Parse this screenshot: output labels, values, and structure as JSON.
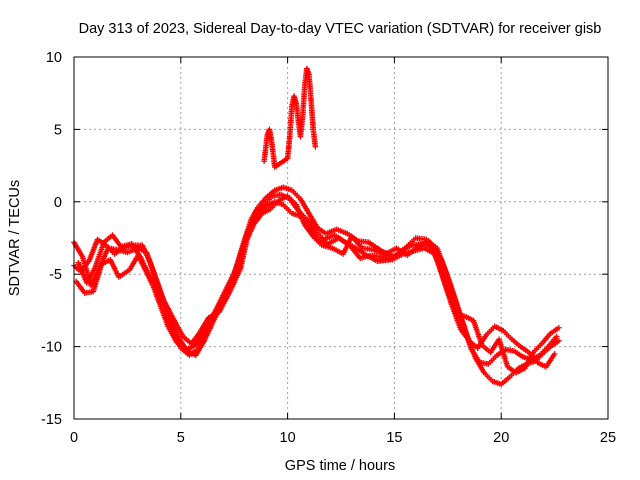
{
  "chart_data": {
    "type": "scatter",
    "title": "Day 313 of 2023, Sidereal Day-to-day VTEC variation (SDTVAR) for receiver gisb",
    "xlabel": "GPS time / hours",
    "ylabel": "SDTVAR / TECUs",
    "xlim": [
      0,
      25
    ],
    "ylim": [
      -15,
      10
    ],
    "xticks": [
      0,
      5,
      10,
      15,
      20,
      25
    ],
    "yticks": [
      -15,
      -10,
      -5,
      0,
      5,
      10
    ],
    "x_tick_labels": [
      "0",
      "5",
      "10",
      "15",
      "20",
      "25"
    ],
    "y_tick_labels": [
      "-15",
      "-10",
      "-5",
      "0",
      "5",
      "10"
    ],
    "grid": true,
    "marker": "+",
    "color": "#ff0000",
    "series": [
      {
        "name": "track-a",
        "points": [
          [
            0,
            -2.8
          ],
          [
            0.4,
            -3.8
          ],
          [
            0.8,
            -5.8
          ],
          [
            1.2,
            -4.5
          ],
          [
            1.6,
            -3.2
          ],
          [
            2.0,
            -3.3
          ],
          [
            2.5,
            -3.5
          ],
          [
            3.0,
            -3.2
          ],
          [
            3.4,
            -3.5
          ],
          [
            3.8,
            -5.2
          ],
          [
            4.1,
            -6.5
          ],
          [
            4.5,
            -8.0
          ],
          [
            4.9,
            -9.4
          ],
          [
            5.3,
            -10.3
          ],
          [
            5.7,
            -10.6
          ],
          [
            6.1,
            -9.6
          ],
          [
            6.6,
            -8.0
          ],
          [
            7.1,
            -6.6
          ],
          [
            7.5,
            -5.0
          ],
          [
            7.9,
            -3.0
          ],
          [
            8.3,
            -1.2
          ],
          [
            8.6,
            -0.4
          ],
          [
            9.0,
            0.3
          ],
          [
            9.4,
            0.8
          ],
          [
            9.8,
            1.0
          ],
          [
            10.2,
            0.8
          ],
          [
            10.6,
            0.2
          ],
          [
            11.0,
            -0.8
          ],
          [
            11.4,
            -1.8
          ],
          [
            11.8,
            -2.2
          ],
          [
            12.3,
            -1.9
          ],
          [
            12.8,
            -2.2
          ],
          [
            13.3,
            -2.7
          ],
          [
            13.8,
            -2.8
          ],
          [
            14.4,
            -3.4
          ],
          [
            15.0,
            -3.8
          ],
          [
            15.5,
            -3.2
          ],
          [
            16.0,
            -2.5
          ],
          [
            16.5,
            -2.6
          ],
          [
            17.0,
            -3.2
          ],
          [
            17.4,
            -4.8
          ],
          [
            17.8,
            -6.6
          ],
          [
            18.2,
            -8.4
          ],
          [
            18.6,
            -10.2
          ],
          [
            19.0,
            -11.1
          ],
          [
            19.4,
            -11.2
          ],
          [
            19.8,
            -10.6
          ],
          [
            20.2,
            -10.2
          ],
          [
            20.6,
            -10.3
          ],
          [
            21.0,
            -10.7
          ],
          [
            21.4,
            -10.9
          ],
          [
            21.8,
            -10.6
          ],
          [
            22.2,
            -10.0
          ],
          [
            22.6,
            -9.3
          ]
        ]
      },
      {
        "name": "track-b",
        "points": [
          [
            0.2,
            -4.2
          ],
          [
            0.6,
            -5.6
          ],
          [
            1.0,
            -4.5
          ],
          [
            1.4,
            -2.8
          ],
          [
            1.8,
            -2.3
          ],
          [
            2.2,
            -3.1
          ],
          [
            2.7,
            -2.9
          ],
          [
            3.1,
            -3.8
          ],
          [
            3.5,
            -5.0
          ],
          [
            3.9,
            -6.1
          ],
          [
            4.3,
            -7.3
          ],
          [
            4.6,
            -8.9
          ],
          [
            5.0,
            -10.1
          ],
          [
            5.4,
            -10.6
          ],
          [
            5.8,
            -10.2
          ],
          [
            6.2,
            -8.7
          ],
          [
            6.7,
            -7.3
          ],
          [
            7.2,
            -5.8
          ],
          [
            7.7,
            -4.3
          ],
          [
            8.1,
            -2.2
          ],
          [
            8.5,
            -0.9
          ],
          [
            8.9,
            -0.2
          ],
          [
            9.3,
            0.4
          ],
          [
            9.7,
            0.5
          ],
          [
            10.1,
            0.2
          ],
          [
            10.5,
            -0.6
          ],
          [
            10.9,
            -1.2
          ],
          [
            11.3,
            -2.0
          ],
          [
            11.7,
            -2.6
          ],
          [
            12.2,
            -2.3
          ],
          [
            12.7,
            -2.8
          ],
          [
            13.2,
            -3.2
          ],
          [
            13.7,
            -3.7
          ],
          [
            14.2,
            -4.1
          ],
          [
            14.8,
            -4.0
          ],
          [
            15.3,
            -3.4
          ],
          [
            15.8,
            -3.0
          ],
          [
            16.3,
            -2.9
          ],
          [
            16.8,
            -3.1
          ],
          [
            17.2,
            -4.0
          ],
          [
            17.6,
            -5.6
          ],
          [
            18.0,
            -7.4
          ],
          [
            18.4,
            -9.2
          ],
          [
            18.8,
            -10.8
          ],
          [
            19.2,
            -11.8
          ],
          [
            19.6,
            -12.4
          ],
          [
            20.0,
            -12.6
          ],
          [
            20.4,
            -12.1
          ],
          [
            20.8,
            -11.5
          ],
          [
            21.2,
            -11.2
          ],
          [
            21.6,
            -11.0
          ],
          [
            22.0,
            -10.4
          ],
          [
            22.4,
            -9.9
          ],
          [
            22.7,
            -9.6
          ]
        ]
      },
      {
        "name": "track-c",
        "points": [
          [
            0.1,
            -5.5
          ],
          [
            0.5,
            -6.3
          ],
          [
            0.9,
            -6.2
          ],
          [
            1.3,
            -4.3
          ],
          [
            1.7,
            -4.0
          ],
          [
            2.1,
            -5.2
          ],
          [
            2.6,
            -4.7
          ],
          [
            3.0,
            -3.7
          ],
          [
            3.3,
            -4.6
          ],
          [
            3.7,
            -5.8
          ],
          [
            4.0,
            -7.0
          ],
          [
            4.4,
            -8.6
          ],
          [
            4.8,
            -9.7
          ],
          [
            5.2,
            -10.2
          ],
          [
            5.6,
            -10.0
          ],
          [
            6.0,
            -9.2
          ],
          [
            6.4,
            -8.2
          ],
          [
            6.9,
            -6.9
          ],
          [
            7.4,
            -5.4
          ],
          [
            7.8,
            -3.6
          ],
          [
            8.2,
            -1.9
          ],
          [
            8.6,
            -0.8
          ],
          [
            9.0,
            -0.3
          ],
          [
            9.4,
            0.0
          ],
          [
            9.8,
            -0.2
          ],
          [
            10.2,
            -0.8
          ],
          [
            10.6,
            -1.0
          ],
          [
            11.0,
            -1.6
          ],
          [
            11.4,
            -2.6
          ],
          [
            11.9,
            -2.9
          ],
          [
            12.4,
            -2.5
          ],
          [
            12.9,
            -3.0
          ],
          [
            13.4,
            -3.9
          ],
          [
            13.9,
            -3.7
          ],
          [
            14.4,
            -3.8
          ],
          [
            14.9,
            -4.0
          ],
          [
            15.4,
            -3.6
          ],
          [
            15.9,
            -3.4
          ],
          [
            16.4,
            -3.2
          ],
          [
            16.9,
            -3.6
          ],
          [
            17.3,
            -5.4
          ],
          [
            17.7,
            -7.2
          ],
          [
            18.1,
            -8.8
          ],
          [
            18.5,
            -9.6
          ],
          [
            18.9,
            -10.1
          ],
          [
            19.3,
            -9.2
          ],
          [
            19.7,
            -8.6
          ],
          [
            20.1,
            -8.9
          ],
          [
            20.5,
            -9.5
          ],
          [
            20.9,
            -10.0
          ],
          [
            21.3,
            -10.4
          ],
          [
            21.7,
            -11.1
          ],
          [
            22.1,
            -11.4
          ],
          [
            22.5,
            -10.5
          ]
        ]
      },
      {
        "name": "track-d",
        "points": [
          [
            0.0,
            -4.4
          ],
          [
            0.3,
            -4.8
          ],
          [
            0.7,
            -4.1
          ],
          [
            1.1,
            -2.6
          ],
          [
            1.5,
            -3.0
          ],
          [
            1.9,
            -3.6
          ],
          [
            2.3,
            -3.2
          ],
          [
            2.8,
            -3.0
          ],
          [
            3.2,
            -3.0
          ],
          [
            3.6,
            -4.3
          ],
          [
            4.2,
            -6.8
          ],
          [
            4.7,
            -8.2
          ],
          [
            5.1,
            -9.3
          ],
          [
            5.5,
            -9.8
          ],
          [
            5.9,
            -9.0
          ],
          [
            6.3,
            -8.0
          ],
          [
            6.8,
            -7.6
          ],
          [
            7.3,
            -6.2
          ],
          [
            7.8,
            -4.6
          ],
          [
            8.1,
            -2.6
          ],
          [
            8.4,
            -1.6
          ],
          [
            8.8,
            -0.8
          ],
          [
            9.2,
            -0.5
          ],
          [
            9.6,
            0.1
          ],
          [
            10.0,
            0.4
          ],
          [
            10.4,
            -0.2
          ],
          [
            10.8,
            -1.6
          ],
          [
            11.2,
            -2.4
          ],
          [
            11.6,
            -3.0
          ],
          [
            12.1,
            -3.2
          ],
          [
            12.6,
            -3.6
          ],
          [
            13.0,
            -2.4
          ],
          [
            13.5,
            -3.2
          ],
          [
            14.0,
            -3.3
          ],
          [
            14.6,
            -3.6
          ],
          [
            15.1,
            -3.2
          ],
          [
            15.6,
            -3.7
          ],
          [
            16.1,
            -3.1
          ],
          [
            16.6,
            -2.7
          ],
          [
            17.1,
            -4.4
          ],
          [
            17.5,
            -6.2
          ],
          [
            17.9,
            -7.8
          ],
          [
            18.3,
            -7.9
          ],
          [
            18.7,
            -8.2
          ],
          [
            19.1,
            -9.9
          ],
          [
            19.5,
            -10.4
          ],
          [
            19.9,
            -9.5
          ],
          [
            20.3,
            -11.4
          ],
          [
            20.7,
            -11.8
          ],
          [
            21.1,
            -11.5
          ],
          [
            21.5,
            -10.4
          ],
          [
            21.9,
            -9.8
          ],
          [
            22.3,
            -9.1
          ],
          [
            22.7,
            -8.7
          ]
        ]
      },
      {
        "name": "spikes",
        "points": [
          [
            8.9,
            2.8
          ],
          [
            9.05,
            4.6
          ],
          [
            9.15,
            5.0
          ],
          [
            9.25,
            4.2
          ],
          [
            9.35,
            3.0
          ],
          [
            9.4,
            2.4
          ],
          [
            10.0,
            3.0
          ],
          [
            10.1,
            4.5
          ],
          [
            10.2,
            6.6
          ],
          [
            10.3,
            7.3
          ],
          [
            10.4,
            6.8
          ],
          [
            10.5,
            5.6
          ],
          [
            10.6,
            4.5
          ],
          [
            10.7,
            5.8
          ],
          [
            10.8,
            8.0
          ],
          [
            10.9,
            9.2
          ],
          [
            11.0,
            8.8
          ],
          [
            11.1,
            7.0
          ],
          [
            11.2,
            5.0
          ],
          [
            11.3,
            3.8
          ]
        ]
      }
    ]
  }
}
